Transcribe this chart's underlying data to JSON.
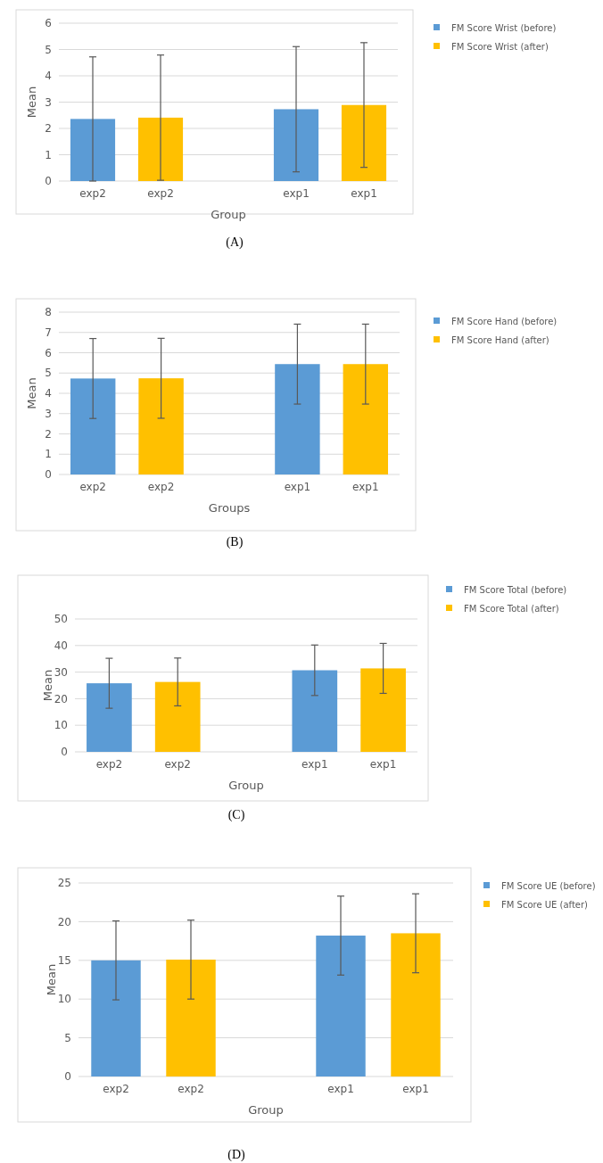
{
  "chart_data": [
    {
      "type": "bar",
      "categories": [
        "exp2",
        "exp2",
        null,
        "exp1",
        "exp1"
      ],
      "xlabel": "Group",
      "ylabel": "Mean",
      "ylim": [
        0,
        6
      ],
      "yticks": [
        0,
        1,
        2,
        3,
        4,
        5,
        6
      ],
      "grid": "y",
      "legend": "right",
      "annotations": [
        "(A)"
      ],
      "series": [
        {
          "name": "FM Score Wrist (before)",
          "color": "#5b9bd5",
          "values": [
            2.36,
            null,
            null,
            2.73,
            null
          ],
          "errors": [
            2.36,
            null,
            null,
            2.38,
            null
          ]
        },
        {
          "name": "FM Score Wrist (after)",
          "color": "#ffc000",
          "values": [
            null,
            2.41,
            null,
            null,
            2.89
          ],
          "errors": [
            null,
            2.38,
            null,
            null,
            2.37
          ]
        }
      ]
    },
    {
      "type": "bar",
      "categories": [
        "exp2",
        "exp2",
        null,
        "exp1",
        "exp1"
      ],
      "xlabel": "Groups",
      "ylabel": "Mean",
      "ylim": [
        0,
        8
      ],
      "yticks": [
        0,
        1,
        2,
        3,
        4,
        5,
        6,
        7,
        8
      ],
      "grid": "y",
      "legend": "right",
      "annotations": [
        "(B)"
      ],
      "series": [
        {
          "name": "FM Score Hand (before)",
          "color": "#5b9bd5",
          "values": [
            4.73,
            null,
            null,
            5.44,
            null
          ],
          "errors": [
            1.97,
            null,
            null,
            1.97,
            null
          ]
        },
        {
          "name": "FM Score Hand (after)",
          "color": "#ffc000",
          "values": [
            null,
            4.74,
            null,
            null,
            5.44
          ],
          "errors": [
            null,
            1.97,
            null,
            null,
            1.97
          ]
        }
      ]
    },
    {
      "type": "bar",
      "categories": [
        "exp2",
        "exp2",
        null,
        "exp1",
        "exp1"
      ],
      "xlabel": "Group",
      "ylabel": "Mean",
      "ylim": [
        0,
        50
      ],
      "yticks": [
        0,
        10,
        20,
        30,
        40,
        50
      ],
      "grid": "y",
      "legend": "right",
      "annotations": [
        "(C)"
      ],
      "series": [
        {
          "name": "FM Score Total (before)",
          "color": "#5b9bd5",
          "values": [
            25.8,
            null,
            null,
            30.7,
            null
          ],
          "errors": [
            9.4,
            null,
            null,
            9.5,
            null
          ]
        },
        {
          "name": "FM Score Total (after)",
          "color": "#ffc000",
          "values": [
            null,
            26.3,
            null,
            null,
            31.4
          ],
          "errors": [
            null,
            9.0,
            null,
            null,
            9.4
          ]
        }
      ]
    },
    {
      "type": "bar",
      "categories": [
        "exp2",
        "exp2",
        null,
        "exp1",
        "exp1"
      ],
      "xlabel": "Group",
      "ylabel": "Mean",
      "ylim": [
        0,
        25
      ],
      "yticks": [
        0,
        5,
        10,
        15,
        20,
        25
      ],
      "grid": "y",
      "legend": "right",
      "annotations": [
        "(D)"
      ],
      "series": [
        {
          "name": "FM Score UE (before)",
          "color": "#5b9bd5",
          "values": [
            15.0,
            null,
            null,
            18.2,
            null
          ],
          "errors": [
            5.1,
            null,
            null,
            5.1,
            null
          ]
        },
        {
          "name": "FM Score UE (after)",
          "color": "#ffc000",
          "values": [
            null,
            15.1,
            null,
            null,
            18.5
          ],
          "errors": [
            null,
            5.1,
            null,
            null,
            5.1
          ]
        }
      ]
    }
  ]
}
